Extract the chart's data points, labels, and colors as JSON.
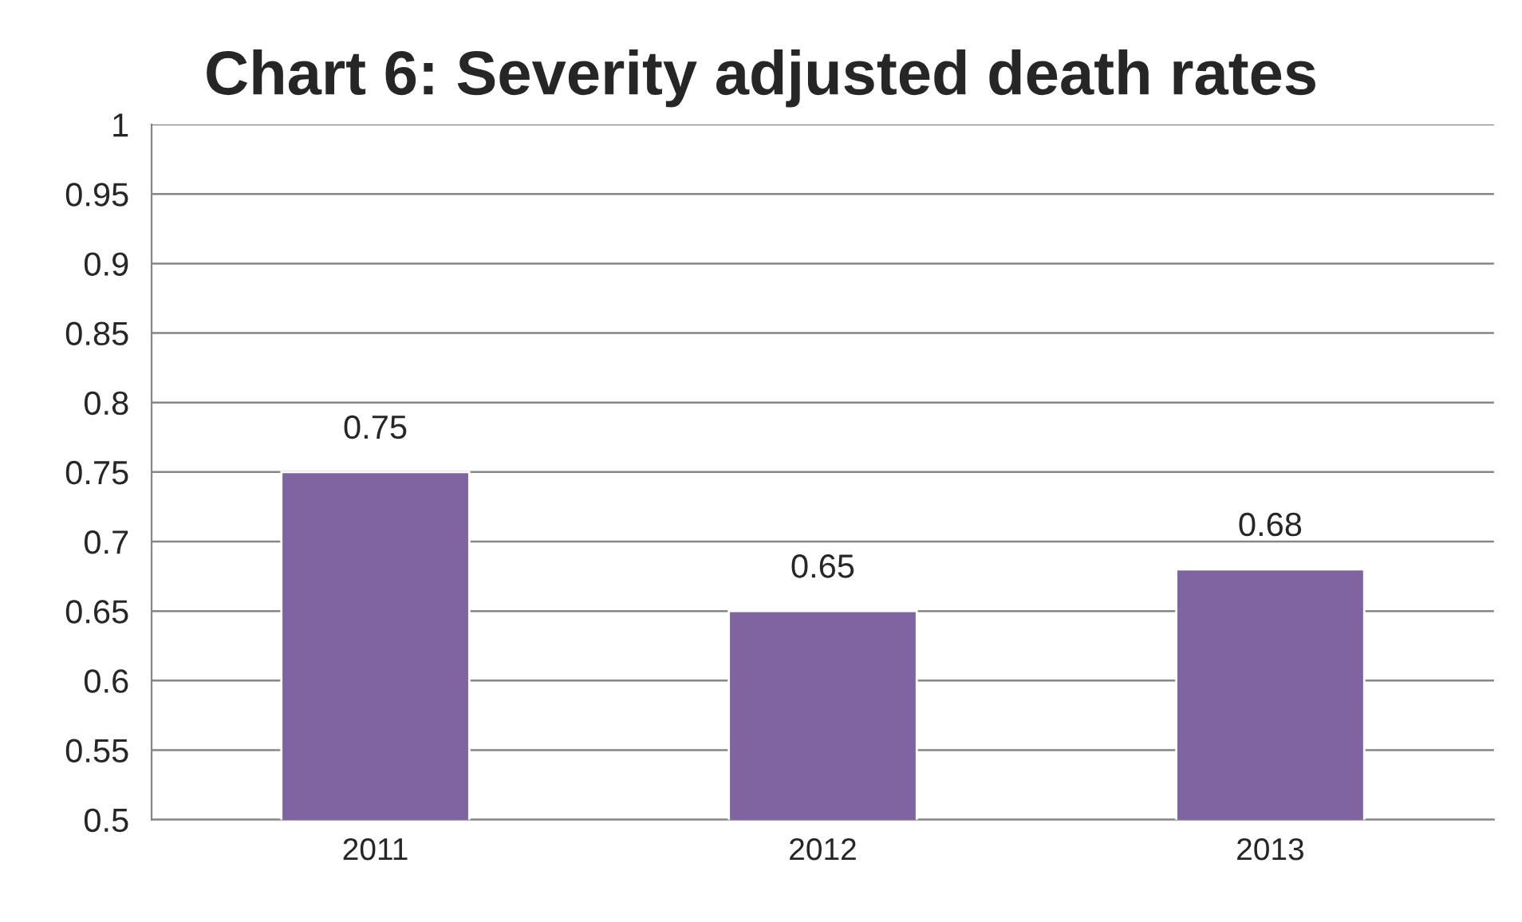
{
  "chart_data": {
    "type": "bar",
    "title": "Chart 6: Severity adjusted death rates",
    "categories": [
      "2011",
      "2012",
      "2013"
    ],
    "values": [
      0.75,
      0.65,
      0.68
    ],
    "color": "#8064a2",
    "ylim": [
      0.5,
      1
    ],
    "yticks": [
      0.5,
      0.55,
      0.6,
      0.65,
      0.7,
      0.75,
      0.8,
      0.85,
      0.9,
      0.95,
      1
    ],
    "grid": "y",
    "data_labels": true
  }
}
